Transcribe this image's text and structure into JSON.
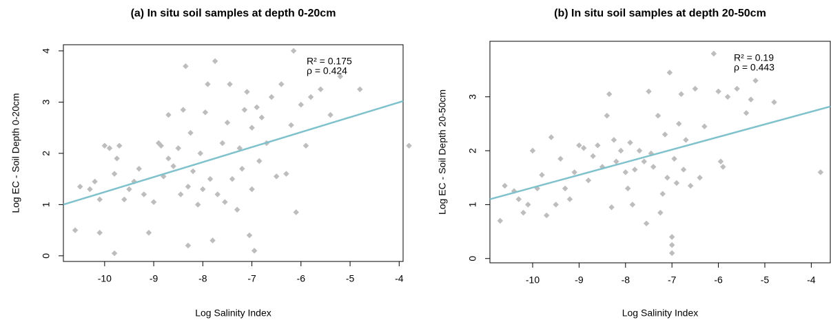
{
  "chart_data": [
    {
      "type": "scatter",
      "title": "(a) In situ soil samples at depth 0-20cm",
      "xlabel": "Log Salinity Index",
      "ylabel": "Log EC - Soil Depth 0-20cm",
      "annotations": [
        "R² = 0.175",
        "ρ = 0.424"
      ],
      "xlim": [
        -10.84,
        -3.92
      ],
      "ylim": [
        -0.11,
        4.12
      ],
      "xticks": [
        -10,
        -9,
        -8,
        -7,
        -6,
        -5,
        -4
      ],
      "yticks": [
        0,
        1,
        2,
        3,
        4
      ],
      "series": [
        {
          "color": "#bdbdbd",
          "x": [
            -10.6,
            -10.5,
            -10.3,
            -10.2,
            -10.1,
            -10.1,
            -10.0,
            -9.9,
            -9.8,
            -9.8,
            -9.75,
            -9.7,
            -9.6,
            -9.5,
            -9.4,
            -9.3,
            -9.2,
            -9.1,
            -9.0,
            -8.9,
            -8.85,
            -8.8,
            -8.7,
            -8.7,
            -8.6,
            -8.5,
            -8.45,
            -8.4,
            -8.35,
            -8.3,
            -8.3,
            -8.25,
            -8.2,
            -8.1,
            -8.05,
            -8.0,
            -7.95,
            -7.9,
            -7.85,
            -7.8,
            -7.75,
            -7.7,
            -7.6,
            -7.55,
            -7.5,
            -7.45,
            -7.4,
            -7.3,
            -7.25,
            -7.2,
            -7.15,
            -7.1,
            -7.05,
            -7.0,
            -7.0,
            -6.95,
            -6.9,
            -6.85,
            -6.8,
            -6.7,
            -6.6,
            -6.5,
            -6.4,
            -6.3,
            -6.2,
            -6.15,
            -6.1,
            -6.0,
            -5.9,
            -5.8,
            -5.6,
            -5.4,
            -5.2,
            -4.8,
            -3.8
          ],
          "values": [
            0.5,
            1.35,
            1.3,
            1.45,
            0.45,
            1.1,
            2.15,
            2.1,
            1.6,
            0.05,
            1.9,
            2.15,
            1.1,
            1.3,
            1.45,
            1.7,
            1.2,
            0.45,
            1.05,
            2.2,
            2.15,
            1.55,
            2.75,
            1.9,
            1.75,
            2.1,
            1.2,
            2.85,
            3.7,
            1.35,
            0.2,
            2.4,
            1.65,
            1.0,
            2.0,
            1.3,
            2.8,
            3.35,
            1.5,
            0.3,
            3.8,
            1.2,
            2.2,
            1.05,
            2.6,
            3.35,
            1.5,
            0.9,
            2.1,
            1.7,
            2.85,
            3.2,
            0.4,
            2.5,
            1.3,
            0.1,
            2.9,
            1.85,
            2.7,
            2.2,
            3.1,
            1.55,
            3.35,
            1.6,
            2.55,
            4.0,
            0.85,
            2.95,
            2.15,
            3.1,
            3.25,
            2.75,
            3.5,
            3.25,
            2.15
          ]
        }
      ],
      "fit": {
        "color": "#7fc1cc",
        "x": [
          -10.84,
          -3.92
        ],
        "values": [
          1.0,
          3.02
        ]
      }
    },
    {
      "type": "scatter",
      "title": "(b) In situ soil samples at depth 20-50cm",
      "xlabel": "Log Salinity Index",
      "ylabel": "Log EC - Soil Depth 20-50cm",
      "annotations": [
        "R² = 0.19",
        "ρ = 0.443"
      ],
      "xlim": [
        -10.92,
        -3.59
      ],
      "ylim": [
        -0.08,
        4.03
      ],
      "xticks": [
        -10,
        -9,
        -8,
        -7,
        -6,
        -5,
        -4
      ],
      "yticks": [
        0,
        1,
        2,
        3
      ],
      "series": [
        {
          "color": "#bdbdbd",
          "x": [
            -10.7,
            -10.6,
            -10.4,
            -10.3,
            -10.2,
            -10.1,
            -10.0,
            -9.9,
            -9.8,
            -9.7,
            -9.6,
            -9.5,
            -9.4,
            -9.3,
            -9.2,
            -9.1,
            -9.0,
            -8.9,
            -8.8,
            -8.7,
            -8.6,
            -8.5,
            -8.4,
            -8.35,
            -8.3,
            -8.25,
            -8.2,
            -8.1,
            -8.0,
            -7.95,
            -7.9,
            -7.85,
            -7.8,
            -7.7,
            -7.6,
            -7.55,
            -7.5,
            -7.45,
            -7.4,
            -7.3,
            -7.25,
            -7.2,
            -7.15,
            -7.1,
            -7.05,
            -7.0,
            -7.0,
            -7.0,
            -6.95,
            -6.9,
            -6.85,
            -6.8,
            -6.75,
            -6.7,
            -6.6,
            -6.5,
            -6.4,
            -6.3,
            -6.1,
            -6.0,
            -5.95,
            -5.9,
            -5.8,
            -5.6,
            -5.4,
            -5.3,
            -5.2,
            -4.8,
            -3.8
          ],
          "values": [
            0.7,
            1.35,
            1.25,
            1.1,
            0.85,
            1.0,
            2.0,
            1.3,
            1.55,
            0.8,
            2.25,
            1.0,
            1.85,
            1.3,
            1.1,
            1.6,
            2.1,
            2.05,
            1.45,
            1.9,
            2.1,
            1.7,
            2.65,
            3.05,
            0.95,
            2.2,
            1.8,
            2.0,
            1.6,
            1.3,
            2.15,
            1.0,
            1.65,
            2.0,
            1.8,
            0.65,
            3.1,
            1.95,
            1.7,
            2.65,
            0.85,
            1.2,
            2.3,
            1.5,
            3.45,
            0.4,
            0.25,
            0.1,
            1.85,
            1.4,
            2.5,
            3.05,
            1.65,
            2.2,
            1.35,
            3.15,
            1.5,
            2.45,
            3.8,
            3.1,
            1.8,
            1.7,
            3.0,
            3.15,
            2.7,
            2.95,
            3.3,
            2.9,
            1.6
          ]
        }
      ],
      "fit": {
        "color": "#7fc1cc",
        "x": [
          -10.92,
          -3.59
        ],
        "values": [
          1.1,
          2.82
        ]
      }
    }
  ]
}
